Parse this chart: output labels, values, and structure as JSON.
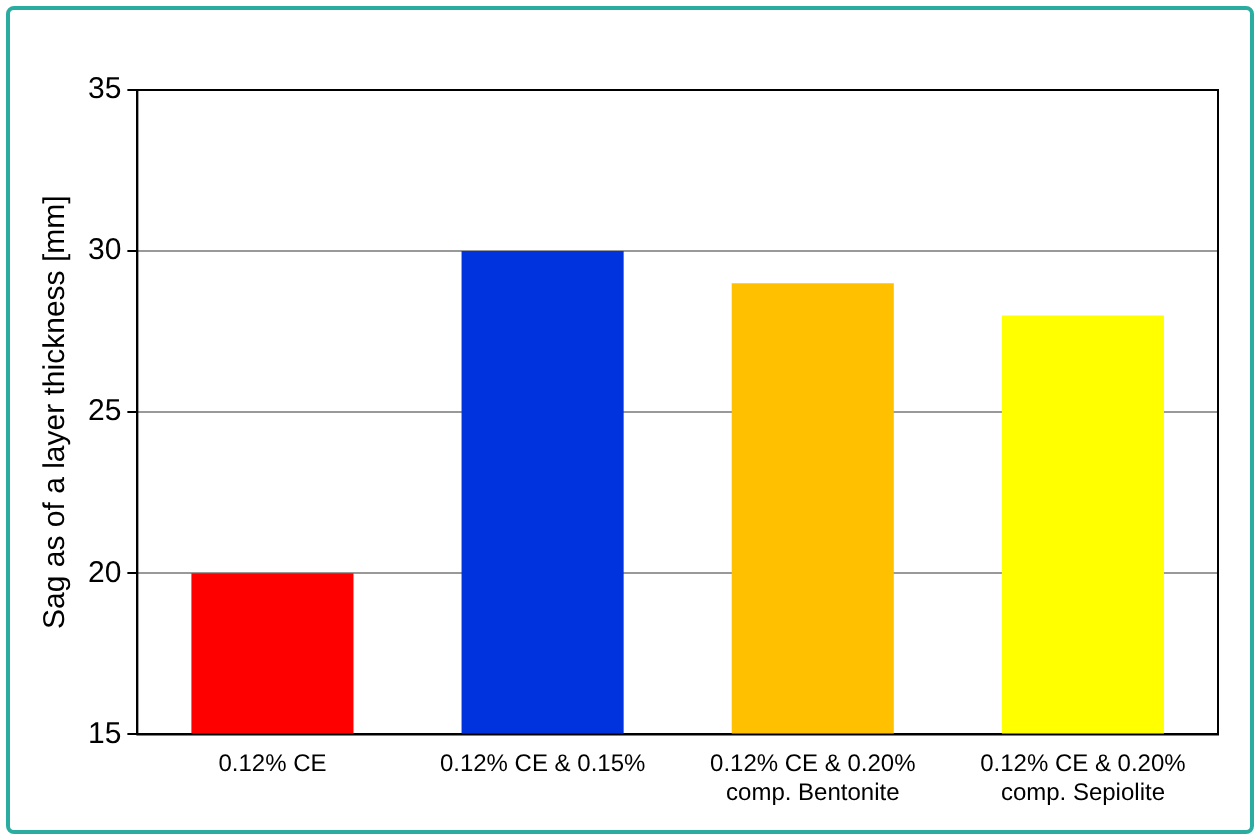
{
  "chart_data": {
    "type": "bar",
    "ylabel": "Sag as of a layer thickness [mm]",
    "categories": [
      "0.12% CE",
      "0.12% CE & 0.15%",
      "0.12% CE & 0.20% comp. Bentonite",
      "0.12% CE & 0.20% comp. Sepiolite"
    ],
    "values": [
      20,
      30,
      29,
      28
    ],
    "colors": [
      "#ff0000",
      "#0033dd",
      "#ffc000",
      "#ffff00"
    ],
    "ylim": [
      15,
      35
    ],
    "yticks": [
      15,
      20,
      25,
      30,
      35
    ],
    "grid": "y",
    "legend": false
  }
}
